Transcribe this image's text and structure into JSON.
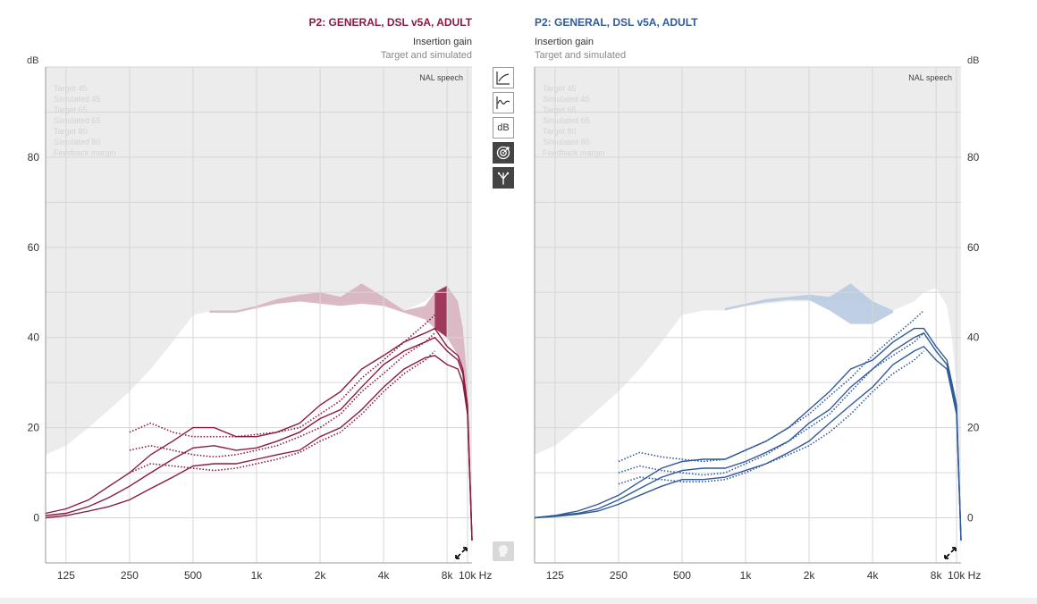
{
  "left_panel": {
    "title": "P2: GENERAL, DSL v5A, ADULT",
    "subtitle1": "Insertion gain",
    "subtitle2": "Target and simulated",
    "unit": "dB",
    "nal_label": "NAL speech",
    "color": "#8b1a3f",
    "fill_color": "#d7b3bf"
  },
  "right_panel": {
    "title": "P2: GENERAL, DSL v5A, ADULT",
    "subtitle1": "Insertion gain",
    "subtitle2": "Target and simulated",
    "unit": "dB",
    "nal_label": "NAL speech",
    "color": "#2f5a99",
    "fill_color": "#b8cbe2"
  },
  "legend": [
    "Target 45",
    "Simulated 45",
    "Target 65",
    "Simulated 65",
    "Target 80",
    "Simulated 80",
    "Feedback margin"
  ],
  "toolbar": {
    "buttons": [
      "gain-curve-icon",
      "response-curve-icon",
      "db-toggle-button",
      "target-icon",
      "speech-icon"
    ],
    "db_label": "dB"
  },
  "chart_data": [
    {
      "type": "line",
      "title": "P2: GENERAL, DSL v5A, ADULT",
      "subtitle": "Insertion gain — Target and simulated",
      "ylabel": "dB",
      "xlabel": "Hz",
      "x_ticks": [
        "125",
        "250",
        "500",
        "1k",
        "2k",
        "4k",
        "8k",
        "10k Hz"
      ],
      "y_ticks": [
        "0",
        "20",
        "40",
        "60",
        "80"
      ],
      "ylim": [
        -10,
        100
      ],
      "x_scale": "log",
      "xlim": [
        100,
        10500
      ],
      "grid": true,
      "series": [
        {
          "name": "Simulated 80",
          "style": "solid",
          "x": [
            100,
            125,
            160,
            200,
            250,
            315,
            400,
            500,
            630,
            800,
            1000,
            1250,
            1600,
            2000,
            2500,
            3150,
            4000,
            5000,
            6300,
            7000,
            8000,
            9000,
            9500,
            10000,
            10500
          ],
          "y": [
            1,
            2,
            4,
            7,
            10,
            14,
            17,
            20,
            20,
            18,
            18,
            19,
            21,
            25,
            28,
            33,
            36,
            39,
            41,
            42,
            38,
            36,
            33,
            25,
            -5
          ]
        },
        {
          "name": "Simulated 65",
          "style": "solid",
          "x": [
            100,
            125,
            160,
            200,
            250,
            315,
            400,
            500,
            630,
            800,
            1000,
            1250,
            1600,
            2000,
            2500,
            3150,
            4000,
            5000,
            6300,
            7000,
            8000,
            9000,
            9500,
            10000,
            10500
          ],
          "y": [
            0.5,
            1,
            2.5,
            4.5,
            7,
            10,
            13,
            15.5,
            16,
            15,
            15.5,
            17,
            19,
            22,
            24,
            29,
            34,
            37,
            39,
            40,
            37,
            35,
            32,
            24,
            -5
          ]
        },
        {
          "name": "Simulated 45",
          "style": "solid",
          "x": [
            100,
            125,
            160,
            200,
            250,
            315,
            400,
            500,
            630,
            800,
            1000,
            1250,
            1600,
            2000,
            2500,
            3150,
            4000,
            5000,
            6300,
            7000,
            8000,
            9000,
            9500,
            10000,
            10500
          ],
          "y": [
            0,
            0.5,
            1.5,
            2.5,
            4,
            6.5,
            9,
            11.5,
            12,
            12,
            13,
            14,
            15,
            18,
            20,
            24,
            29,
            33,
            35.5,
            36,
            34,
            33,
            30,
            23,
            -5
          ]
        },
        {
          "name": "Target 80",
          "style": "dotted",
          "x": [
            250,
            315,
            400,
            500,
            630,
            800,
            1000,
            1250,
            1600,
            2000,
            2500,
            3150,
            4000,
            5000,
            6300,
            7000
          ],
          "y": [
            19,
            21,
            19,
            18,
            18,
            18,
            18.5,
            19,
            20,
            23,
            26,
            31,
            35,
            39,
            43,
            45
          ]
        },
        {
          "name": "Target 65",
          "style": "dotted",
          "x": [
            250,
            315,
            400,
            500,
            630,
            800,
            1000,
            1250,
            1600,
            2000,
            2500,
            3150,
            4000,
            5000,
            6300,
            7000
          ],
          "y": [
            15,
            16,
            15,
            14,
            13.5,
            14,
            15,
            16,
            18,
            20,
            23,
            28,
            32,
            36,
            39,
            41
          ]
        },
        {
          "name": "Target 45",
          "style": "dotted",
          "x": [
            250,
            315,
            400,
            500,
            630,
            800,
            1000,
            1250,
            1600,
            2000,
            2500,
            3150,
            4000,
            5000,
            6300,
            7000
          ],
          "y": [
            10,
            12,
            11.5,
            11,
            10.5,
            11,
            12,
            13,
            14.5,
            17,
            19,
            23,
            28,
            32,
            35,
            37
          ]
        }
      ]
    },
    {
      "type": "line",
      "title": "P2: GENERAL, DSL v5A, ADULT",
      "subtitle": "Insertion gain — Target and simulated",
      "ylabel": "dB",
      "xlabel": "Hz",
      "x_ticks": [
        "125",
        "250",
        "500",
        "1k",
        "2k",
        "4k",
        "8k",
        "10k Hz"
      ],
      "y_ticks": [
        "0",
        "20",
        "40",
        "60",
        "80"
      ],
      "ylim": [
        -10,
        100
      ],
      "x_scale": "log",
      "xlim": [
        100,
        10500
      ],
      "grid": true,
      "series": [
        {
          "name": "Simulated 80",
          "style": "solid",
          "x": [
            100,
            125,
            160,
            200,
            250,
            315,
            400,
            500,
            630,
            800,
            1000,
            1250,
            1600,
            2000,
            2500,
            3150,
            4000,
            5000,
            6300,
            7000,
            8000,
            9000,
            9500,
            10000,
            10500
          ],
          "y": [
            0,
            0.5,
            1.5,
            3,
            5,
            8,
            11,
            12.5,
            13,
            13,
            15,
            17,
            20,
            24,
            28,
            33,
            35,
            39,
            42,
            42,
            38,
            35,
            30,
            25,
            -5
          ]
        },
        {
          "name": "Simulated 65",
          "style": "solid",
          "x": [
            100,
            125,
            160,
            200,
            250,
            315,
            400,
            500,
            630,
            800,
            1000,
            1250,
            1600,
            2000,
            2500,
            3150,
            4000,
            5000,
            6300,
            7000,
            8000,
            9000,
            9500,
            10000,
            10500
          ],
          "y": [
            0,
            0.5,
            1,
            2,
            4,
            6.5,
            9,
            10.5,
            11,
            11,
            12.5,
            14.5,
            17,
            21,
            24,
            29,
            33,
            37,
            40,
            41,
            37,
            34,
            29,
            24,
            -5
          ]
        },
        {
          "name": "Simulated 45",
          "style": "solid",
          "x": [
            100,
            125,
            160,
            200,
            250,
            315,
            400,
            500,
            630,
            800,
            1000,
            1250,
            1600,
            2000,
            2500,
            3150,
            4000,
            5000,
            6300,
            7000,
            8000,
            9000,
            9500,
            10000,
            10500
          ],
          "y": [
            0,
            0.3,
            0.8,
            1.5,
            3,
            5,
            7,
            8.5,
            8.5,
            9,
            10.5,
            12,
            14.5,
            17,
            21,
            25,
            29,
            34,
            37,
            38,
            35,
            33,
            28,
            23,
            -5
          ]
        },
        {
          "name": "Target 80",
          "style": "dotted",
          "x": [
            250,
            315,
            400,
            500,
            630,
            800,
            1000,
            1250,
            1600,
            2000,
            2500,
            3150,
            4000,
            5000,
            6300,
            7000
          ],
          "y": [
            12.5,
            14.5,
            13.5,
            13,
            12.5,
            13,
            15,
            17,
            20,
            23,
            27,
            31,
            36,
            40,
            44,
            46
          ]
        },
        {
          "name": "Target 65",
          "style": "dotted",
          "x": [
            250,
            315,
            400,
            500,
            630,
            800,
            1000,
            1250,
            1600,
            2000,
            2500,
            3150,
            4000,
            5000,
            6300,
            7000
          ],
          "y": [
            10,
            11.5,
            10.5,
            10,
            9.5,
            10,
            12,
            14,
            17,
            20,
            23,
            28,
            33,
            36,
            39,
            41
          ]
        },
        {
          "name": "Target 45",
          "style": "dotted",
          "x": [
            250,
            315,
            400,
            500,
            630,
            800,
            1000,
            1250,
            1600,
            2000,
            2500,
            3150,
            4000,
            5000,
            6300,
            7000
          ],
          "y": [
            7.5,
            9,
            8.5,
            8,
            8,
            8.5,
            10,
            12,
            14,
            16,
            19,
            23,
            28,
            32,
            35,
            37
          ]
        }
      ]
    }
  ]
}
